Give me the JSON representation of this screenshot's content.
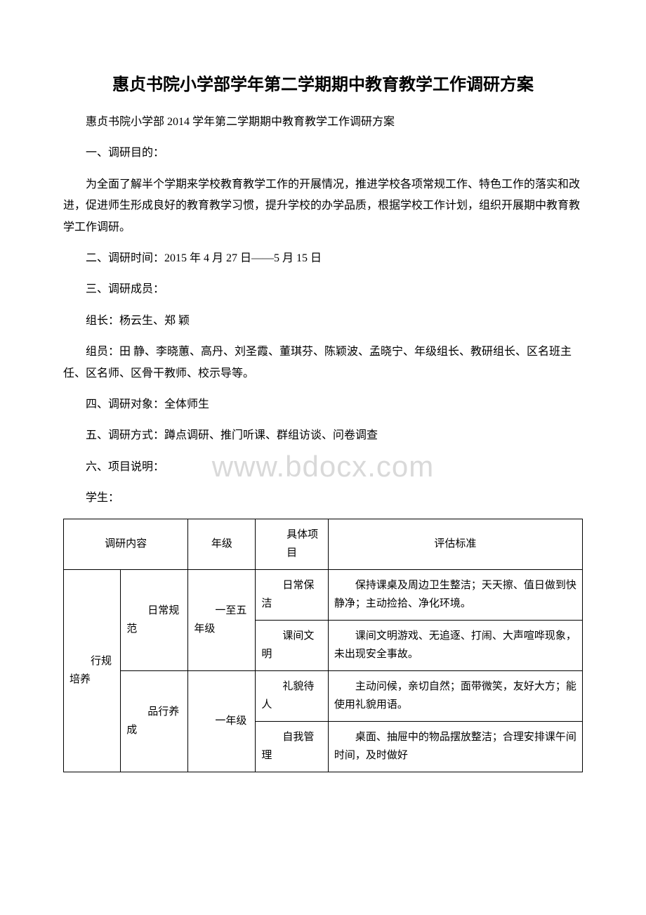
{
  "title": "惠贞书院小学部学年第二学期期中教育教学工作调研方案",
  "paragraphs": {
    "p1": "惠贞书院小学部 2014 学年第二学期期中教育教学工作调研方案",
    "p2": "一、调研目的：",
    "p3": "为全面了解半个学期来学校教育教学工作的开展情况，推进学校各项常规工作、特色工作的落实和改进，促进师生形成良好的教育教学习惯，提升学校的办学品质，根据学校工作计划，组织开展期中教育教学工作调研。",
    "p4": "二、调研时间：2015 年 4 月 27 日——5 月 15 日",
    "p5": "三、调研成员：",
    "p6": "组长：杨云生、郑 颖",
    "p7": "组员：田 静、李晓蕙、高丹、刘圣霞、董琪芬、陈颖波、孟晓宁、年级组长、教研组长、区名班主任、区名师、区骨干教师、校示导等。",
    "p8": "四、调研对象：全体师生",
    "p9": "五、调研方式：蹲点调研、推门听课、群组访谈、问卷调查",
    "p10": "六、项目说明：",
    "p11": "学生："
  },
  "watermark": "www.bdocx.com",
  "table": {
    "headers": {
      "h1": "调研内容",
      "h2": "年级",
      "h3": "具体项目",
      "h4": "评估标准"
    },
    "rows": {
      "category": "行规培养",
      "sub1": {
        "name": "日常规范",
        "grade": "一至五年级",
        "item1": {
          "project": "日常保洁",
          "standard": "保持课桌及周边卫生整洁；天天擦、值日做到快静净；主动捡拾、净化环境。"
        },
        "item2": {
          "project": "课间文明",
          "standard": "课间文明游戏、无追逐、打闹、大声喧哗现象，未出现安全事故。"
        }
      },
      "sub2": {
        "name": "品行养成",
        "grade": "一年级",
        "item1": {
          "project": "礼貌待人",
          "standard": "主动问候，亲切自然；面带微笑，友好大方；能使用礼貌用语。"
        },
        "item2": {
          "project": "自我管理",
          "standard": "桌面、抽屉中的物品摆放整洁；合理安排课午间时间，及时做好"
        }
      }
    }
  }
}
